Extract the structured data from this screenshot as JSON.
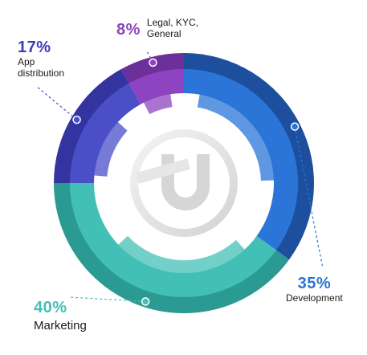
{
  "chart_data": {
    "type": "pie",
    "style": "donut",
    "categories": [
      "Development",
      "Marketing",
      "App distribution",
      "Legal, KYC, General"
    ],
    "values": [
      35,
      40,
      17,
      8
    ],
    "value_labels": [
      "35%",
      "40%",
      "17%",
      "8%"
    ],
    "colors": [
      "#2b74d8",
      "#43c0b6",
      "#4a4fc8",
      "#8e44c0"
    ],
    "colors_dark": [
      "#1d4f9e",
      "#2a9a92",
      "#3434a0",
      "#6d2f9a"
    ],
    "center_logo": "brand-u-logo-icon",
    "legend": "callout-labels"
  }
}
